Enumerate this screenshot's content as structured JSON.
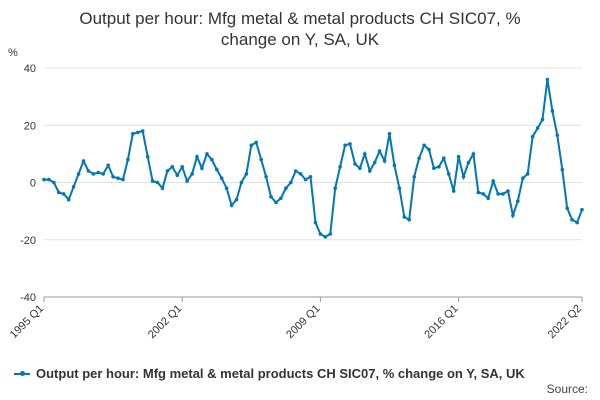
{
  "chart_data": {
    "type": "line",
    "title_line1": "Output per hour: Mfg metal & metal products CH SIC07, %",
    "title_line2": "change on Y, SA, UK",
    "ylabel": "%",
    "ylim": [
      -40,
      40
    ],
    "yticks": [
      -40,
      -20,
      0,
      20,
      40
    ],
    "x_tick_labels": [
      "1995 Q1",
      "2002 Q1",
      "2009 Q1",
      "2016 Q1",
      "2022 Q2"
    ],
    "series": [
      {
        "name": "Output per hour: Mfg metal & metal products CH SIC07, % change on Y, SA, UK",
        "color": "#0077b6",
        "x": [
          "1995 Q1",
          "1995 Q2",
          "1995 Q3",
          "1995 Q4",
          "1996 Q1",
          "1996 Q2",
          "1996 Q3",
          "1996 Q4",
          "1997 Q1",
          "1997 Q2",
          "1997 Q3",
          "1997 Q4",
          "1998 Q1",
          "1998 Q2",
          "1998 Q3",
          "1998 Q4",
          "1999 Q1",
          "1999 Q2",
          "1999 Q3",
          "1999 Q4",
          "2000 Q1",
          "2000 Q2",
          "2000 Q3",
          "2000 Q4",
          "2001 Q1",
          "2001 Q2",
          "2001 Q3",
          "2001 Q4",
          "2002 Q1",
          "2002 Q2",
          "2002 Q3",
          "2002 Q4",
          "2003 Q1",
          "2003 Q2",
          "2003 Q3",
          "2003 Q4",
          "2004 Q1",
          "2004 Q2",
          "2004 Q3",
          "2004 Q4",
          "2005 Q1",
          "2005 Q2",
          "2005 Q3",
          "2005 Q4",
          "2006 Q1",
          "2006 Q2",
          "2006 Q3",
          "2006 Q4",
          "2007 Q1",
          "2007 Q2",
          "2007 Q3",
          "2007 Q4",
          "2008 Q1",
          "2008 Q2",
          "2008 Q3",
          "2008 Q4",
          "2009 Q1",
          "2009 Q2",
          "2009 Q3",
          "2009 Q4",
          "2010 Q1",
          "2010 Q2",
          "2010 Q3",
          "2010 Q4",
          "2011 Q1",
          "2011 Q2",
          "2011 Q3",
          "2011 Q4",
          "2012 Q1",
          "2012 Q2",
          "2012 Q3",
          "2012 Q4",
          "2013 Q1",
          "2013 Q2",
          "2013 Q3",
          "2013 Q4",
          "2014 Q1",
          "2014 Q2",
          "2014 Q3",
          "2014 Q4",
          "2015 Q1",
          "2015 Q2",
          "2015 Q3",
          "2015 Q4",
          "2016 Q1",
          "2016 Q2",
          "2016 Q3",
          "2016 Q4",
          "2017 Q1",
          "2017 Q2",
          "2017 Q3",
          "2017 Q4",
          "2018 Q1",
          "2018 Q2",
          "2018 Q3",
          "2018 Q4",
          "2019 Q1",
          "2019 Q2",
          "2019 Q3",
          "2019 Q4",
          "2020 Q1",
          "2020 Q2",
          "2020 Q3",
          "2020 Q4",
          "2021 Q1",
          "2021 Q2",
          "2021 Q3",
          "2021 Q4",
          "2022 Q1",
          "2022 Q2"
        ],
        "values": [
          1,
          1,
          0,
          -3.5,
          -4,
          -6,
          -1.5,
          3,
          7.5,
          4,
          3,
          3.5,
          3,
          6,
          2,
          1.5,
          1,
          8,
          17,
          17.5,
          18,
          9,
          0.5,
          0,
          -2,
          4,
          5.5,
          2.5,
          5.5,
          0.5,
          3,
          9,
          5,
          10,
          8,
          4.5,
          1.5,
          -2,
          -8,
          -6,
          0,
          3,
          13,
          14,
          8,
          2,
          -5,
          -7,
          -5.5,
          -2,
          0,
          4,
          3,
          1,
          2,
          -14,
          -18,
          -19,
          -18,
          -2,
          5.5,
          13,
          13.5,
          6.5,
          5,
          10,
          4,
          7,
          11,
          7.5,
          17,
          6,
          -2,
          -12,
          -13,
          2,
          8.5,
          13,
          11.5,
          5,
          5.5,
          8.5,
          3,
          -3,
          9,
          2,
          7,
          10,
          -3.5,
          -4,
          -5.5,
          0.5,
          -4,
          -4,
          -3,
          -11.5,
          -6.5,
          1.5,
          3,
          16,
          19,
          22,
          36,
          25,
          16.5,
          4.5,
          -9,
          -13,
          -14,
          -9.5
        ]
      }
    ],
    "legend_position": "bottom-left",
    "source_label": "Source:"
  }
}
